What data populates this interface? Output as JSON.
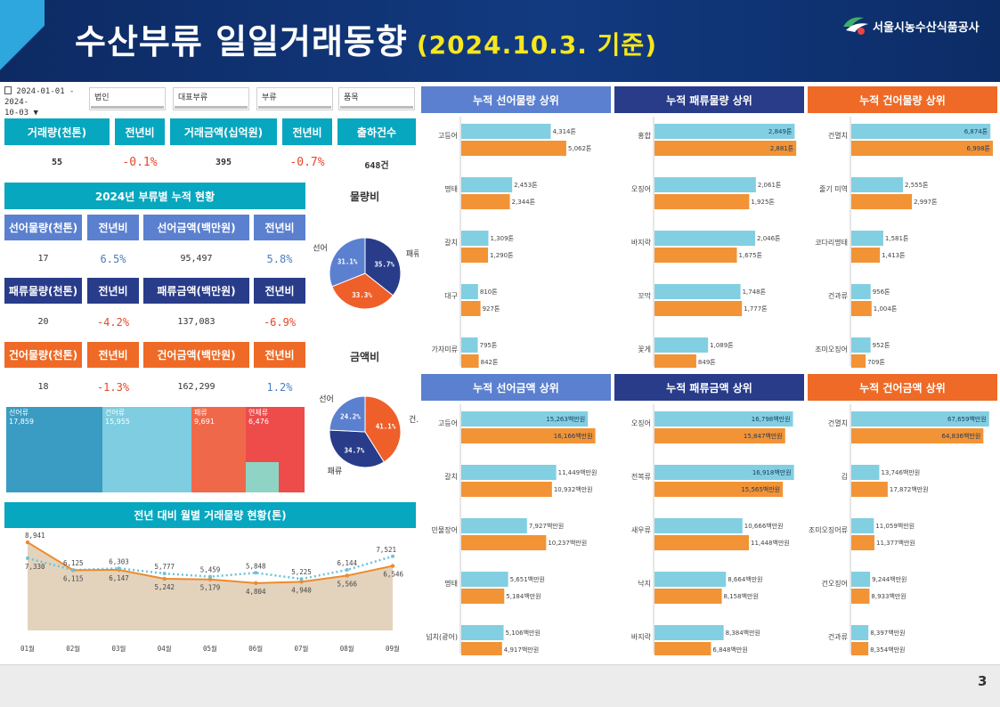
{
  "header": {
    "title": "수산부류 일일거래동향",
    "date": "(2024.10.3. 기준)",
    "org": "서울시농수산식품공사"
  },
  "page_number": "3",
  "filters": {
    "date_range_line1": "2024-01-01 - 2024-",
    "date_range_line2": "10-03",
    "corp": "법인",
    "category": "대표부류",
    "class": "부류",
    "item": "품목"
  },
  "kpi": {
    "volume_label": "거래량(천톤)",
    "volume_yoy_label": "전년비",
    "amount_label": "거래금액(십억원)",
    "amount_yoy_label": "전년비",
    "shipments_label": "출하건수",
    "volume": "55",
    "volume_yoy": "-0.1%",
    "amount": "395",
    "amount_yoy": "-0.7%",
    "shipments": "648건"
  },
  "cum_title": "2024년 부류별 누적 현황",
  "fresh": {
    "vol_label": "선어물량(천톤)",
    "vol_yoy_label": "전년비",
    "amt_label": "선어금액(백만원)",
    "amt_yoy_label": "전년비",
    "vol": "17",
    "vol_yoy": "6.5%",
    "amt": "95,497",
    "amt_yoy": "5.8%"
  },
  "shell": {
    "vol_label": "패류물량(천톤)",
    "vol_yoy_label": "전년비",
    "amt_label": "패류금액(백만원)",
    "amt_yoy_label": "전년비",
    "vol": "20",
    "vol_yoy": "-4.2%",
    "amt": "137,083",
    "amt_yoy": "-6.9%"
  },
  "dried": {
    "vol_label": "건어물량(천톤)",
    "vol_yoy_label": "전년비",
    "amt_label": "건어금액(백만원)",
    "amt_yoy_label": "전년비",
    "vol": "18",
    "vol_yoy": "-1.3%",
    "amt": "162,299",
    "amt_yoy": "1.2%"
  },
  "treemap": [
    {
      "label": "선어류",
      "value": "17,859",
      "color": "#3a9cc3"
    },
    {
      "label": "건어류",
      "value": "15,955",
      "color": "#7ecde0"
    },
    {
      "label": "패류",
      "value": "9,691",
      "color": "#f0684a"
    },
    {
      "label": "연체류",
      "value": "6,476",
      "color": "#ee4b4b"
    }
  ],
  "pies": {
    "volume_title": "물량비",
    "amount_title": "금액비",
    "volume": [
      {
        "name": "패류",
        "pct": "35.7%",
        "value": 35.7,
        "color": "#283c8a"
      },
      {
        "name": "",
        "pct": "33.3%",
        "value": 33.3,
        "color": "#ee5f2a"
      },
      {
        "name": "선어",
        "pct": "31.1%",
        "value": 31.1,
        "color": "#5b80cf"
      }
    ],
    "amount": [
      {
        "name": "건...",
        "pct": "41.1%",
        "value": 41.1,
        "color": "#ee5f2a"
      },
      {
        "name": "패류",
        "pct": "34.7%",
        "value": 34.7,
        "color": "#283c8a"
      },
      {
        "name": "선어",
        "pct": "24.2%",
        "value": 24.2,
        "color": "#5b80cf"
      }
    ]
  },
  "monthly": {
    "title": "전년 대비 월별 거래물량 현황(톤)",
    "months": [
      "01월",
      "02월",
      "03월",
      "04월",
      "05월",
      "06월",
      "07월",
      "08월",
      "09월"
    ],
    "current": [
      8941,
      6115,
      6147,
      5242,
      5179,
      4804,
      4940,
      5566,
      6546
    ],
    "current_labels": [
      "8,941",
      "6,115",
      "6,147",
      "5,242",
      "5,179",
      "4,804",
      "4,940",
      "5,566",
      "6,546"
    ],
    "prev": [
      7330,
      6125,
      6303,
      5777,
      5459,
      5848,
      5225,
      6144,
      7521
    ],
    "prev_labels": [
      "7,330",
      "6,125",
      "6,303",
      "5,777",
      "5,459",
      "5,848",
      "5,225",
      "6,144",
      "7,521"
    ],
    "colors": {
      "current": "#ee8a2a",
      "prev": "#6cc2dc",
      "area": "#e3d3bd"
    }
  },
  "panels": [
    {
      "title": "누적 선어물량 상위",
      "color": "#5b80cf",
      "max": 6998,
      "items": [
        {
          "name": "고등어",
          "a": 4314,
          "b": 5062,
          "al": "4,314톤",
          "bl": "5,062톤"
        },
        {
          "name": "명태",
          "a": 2453,
          "b": 2344,
          "al": "2,453톤",
          "bl": "2,344톤"
        },
        {
          "name": "갈치",
          "a": 1309,
          "b": 1290,
          "al": "1,309톤",
          "bl": "1,290톤"
        },
        {
          "name": "대구",
          "a": 810,
          "b": 927,
          "al": "810톤",
          "bl": "927톤"
        },
        {
          "name": "가자미류",
          "a": 795,
          "b": 842,
          "al": "795톤",
          "bl": "842톤"
        }
      ]
    },
    {
      "title": "누적 패류물량 상위",
      "color": "#283c8a",
      "max": 2950,
      "items": [
        {
          "name": "홍합",
          "a": 2849,
          "b": 2881,
          "al": "2,849톤",
          "bl": "2,881톤"
        },
        {
          "name": "오징어",
          "a": 2061,
          "b": 1925,
          "al": "2,061톤",
          "bl": "1,925톤"
        },
        {
          "name": "바지락",
          "a": 2046,
          "b": 1675,
          "al": "2,046톤",
          "bl": "1,675톤"
        },
        {
          "name": "꼬막",
          "a": 1748,
          "b": 1777,
          "al": "1,748톤",
          "bl": "1,777톤"
        },
        {
          "name": "꽃게",
          "a": 1089,
          "b": 849,
          "al": "1,089톤",
          "bl": "849톤"
        }
      ]
    },
    {
      "title": "누적 건어물량 상위",
      "color": "#ee6a26",
      "max": 6998,
      "items": [
        {
          "name": "건멸치",
          "a": 6874,
          "b": 6998,
          "al": "6,874톤",
          "bl": "6,998톤"
        },
        {
          "name": "줄기 미역",
          "a": 2555,
          "b": 2997,
          "al": "2,555톤",
          "bl": "2,997톤"
        },
        {
          "name": "코다리명태",
          "a": 1581,
          "b": 1413,
          "al": "1,581톤",
          "bl": "1,413톤"
        },
        {
          "name": "건과류",
          "a": 956,
          "b": 1004,
          "al": "956톤",
          "bl": "1,004톤"
        },
        {
          "name": "조미오징어",
          "a": 952,
          "b": 709,
          "al": "952톤",
          "bl": "709톤"
        }
      ]
    },
    {
      "title": "누적 선어금액 상위",
      "color": "#5b80cf",
      "max": 17500,
      "items": [
        {
          "name": "고등어",
          "a": 15263,
          "b": 16166,
          "al": "15,263백만원",
          "bl": "16,166백만원"
        },
        {
          "name": "갈치",
          "a": 11449,
          "b": 10932,
          "al": "11,449백만원",
          "bl": "10,932백만원"
        },
        {
          "name": "민물장어",
          "a": 7927,
          "b": 10237,
          "al": "7,927백만원",
          "bl": "10,237백만원"
        },
        {
          "name": "명태",
          "a": 5651,
          "b": 5184,
          "al": "5,651백만원",
          "bl": "5,184백만원"
        },
        {
          "name": "넙치(광어)",
          "a": 5106,
          "b": 4917,
          "al": "5,106백만원",
          "bl": "4,917백만원"
        }
      ]
    },
    {
      "title": "누적 패류금액 상위",
      "color": "#283c8a",
      "max": 17600,
      "items": [
        {
          "name": "오징어",
          "a": 16798,
          "b": 15847,
          "al": "16,798백만원",
          "bl": "15,847백만원"
        },
        {
          "name": "전복류",
          "a": 16918,
          "b": 15565,
          "al": "16,918백만원",
          "bl": "15,565백만원"
        },
        {
          "name": "새우류",
          "a": 10666,
          "b": 11448,
          "al": "10,666백만원",
          "bl": "11,448백만원"
        },
        {
          "name": "낙지",
          "a": 8664,
          "b": 8158,
          "al": "8,664백만원",
          "bl": "8,158백만원"
        },
        {
          "name": "바지락",
          "a": 8384,
          "b": 6848,
          "al": "8,384백만원",
          "bl": "6,848백만원"
        }
      ]
    },
    {
      "title": "누적 건어금액 상위",
      "color": "#ee6a26",
      "max": 69500,
      "items": [
        {
          "name": "건멸치",
          "a": 67659,
          "b": 64836,
          "al": "67,659백만원",
          "bl": "64,836백만원"
        },
        {
          "name": "김",
          "a": 13746,
          "b": 17872,
          "al": "13,746백만원",
          "bl": "17,872백만원"
        },
        {
          "name": "조미오징어류",
          "a": 11059,
          "b": 11377,
          "al": "11,059백만원",
          "bl": "11,377백만원"
        },
        {
          "name": "건오징어",
          "a": 9244,
          "b": 8933,
          "al": "9,244백만원",
          "bl": "8,933백만원"
        },
        {
          "name": "건과류",
          "a": 8397,
          "b": 8354,
          "al": "8,397백만원",
          "bl": "8,354백만원"
        }
      ]
    }
  ],
  "bar_colors": {
    "a": "#82cfe1",
    "b": "#f29335"
  }
}
